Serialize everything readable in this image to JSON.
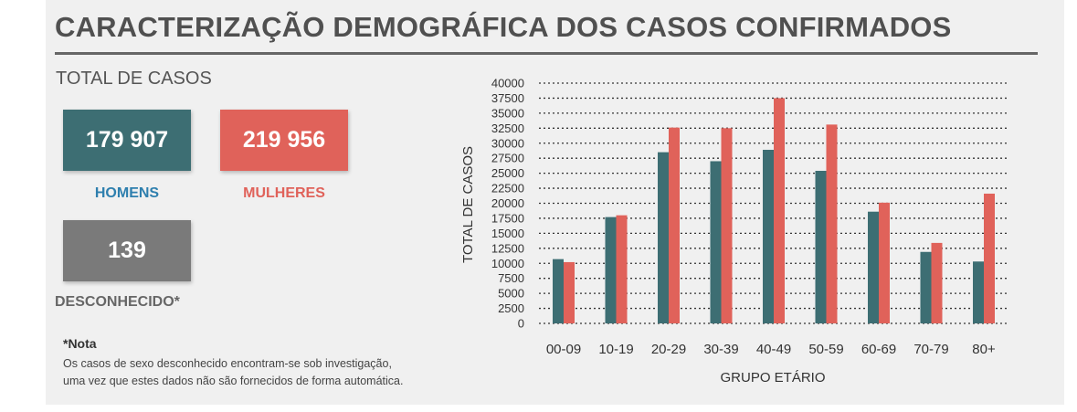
{
  "title": "CARACTERIZAÇÃO DEMOGRÁFICA DOS CASOS CONFIRMADOS",
  "totals": {
    "label": "TOTAL DE CASOS",
    "men": {
      "value": "179 907",
      "label": "HOMENS",
      "color": "#3d6e73"
    },
    "women": {
      "value": "219 956",
      "label": "MULHERES",
      "color": "#e0625a"
    },
    "unknown": {
      "value": "139",
      "label": "DESCONHECIDO*",
      "color": "#7a7a7a"
    }
  },
  "note": {
    "title": "*Nota",
    "line1": "Os casos de sexo desconhecido encontram-se sob investigação,",
    "line2": "uma vez que estes dados não são fornecidos de forma automática."
  },
  "chart_data": {
    "type": "bar",
    "categories": [
      "00-09",
      "10-19",
      "20-29",
      "30-39",
      "40-49",
      "50-59",
      "60-69",
      "70-79",
      "80+"
    ],
    "series": [
      {
        "values": [
          10700,
          17700,
          28500,
          27000,
          28900,
          25400,
          18600,
          11900,
          10300
        ],
        "color": "#3d6e73"
      },
      {
        "values": [
          10200,
          18000,
          32600,
          32500,
          37500,
          33100,
          20100,
          13400,
          21600
        ],
        "color": "#e0625a"
      }
    ],
    "xlabel": "GRUPO ETÁRIO",
    "ylabel": "TOTAL DE CASOS",
    "ylim": [
      0,
      40000
    ],
    "yticks": [
      "0",
      "2500",
      "5000",
      "7500",
      "10000",
      "12500",
      "15000",
      "17500",
      "20000",
      "22500",
      "25000",
      "27500",
      "30000",
      "32500",
      "35000",
      "37500",
      "40000"
    ],
    "grid": true
  }
}
